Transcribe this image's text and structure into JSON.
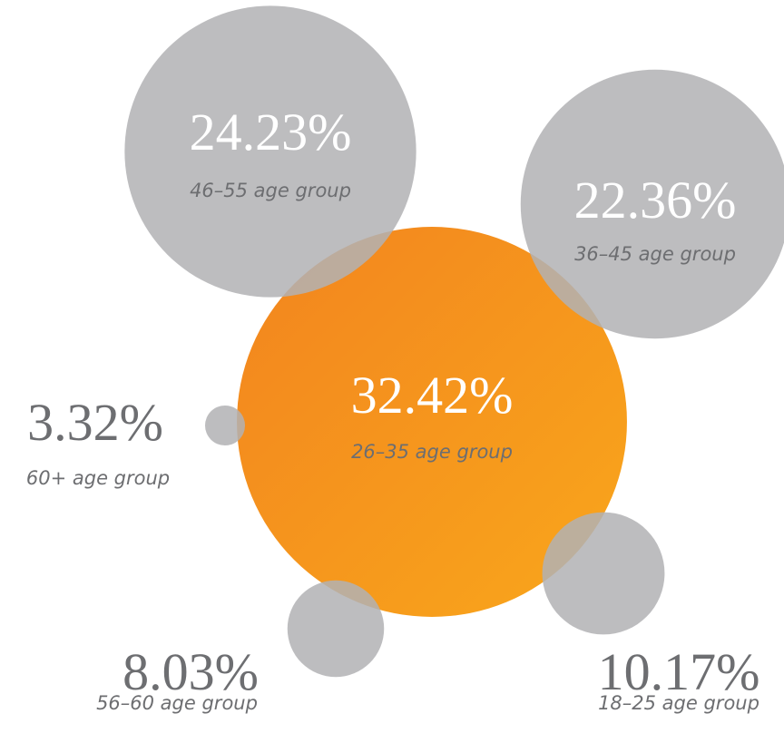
{
  "chart_data": {
    "type": "bubble",
    "categories": [
      "26–35 age group",
      "46–55 age group",
      "36–45 age group",
      "60+ age group",
      "56–60 age group",
      "18–25 age group"
    ],
    "values": [
      32.42,
      24.23,
      22.36,
      3.32,
      8.03,
      10.17
    ],
    "value_labels": [
      "32.42%",
      "24.23%",
      "22.36%",
      "3.32%",
      "8.03%",
      "10.17%"
    ],
    "colors": [
      "#f5921e",
      "#b1b2b4",
      "#b1b2b4",
      "#b1b2b4",
      "#b1b2b4",
      "#b1b2b4"
    ]
  }
}
